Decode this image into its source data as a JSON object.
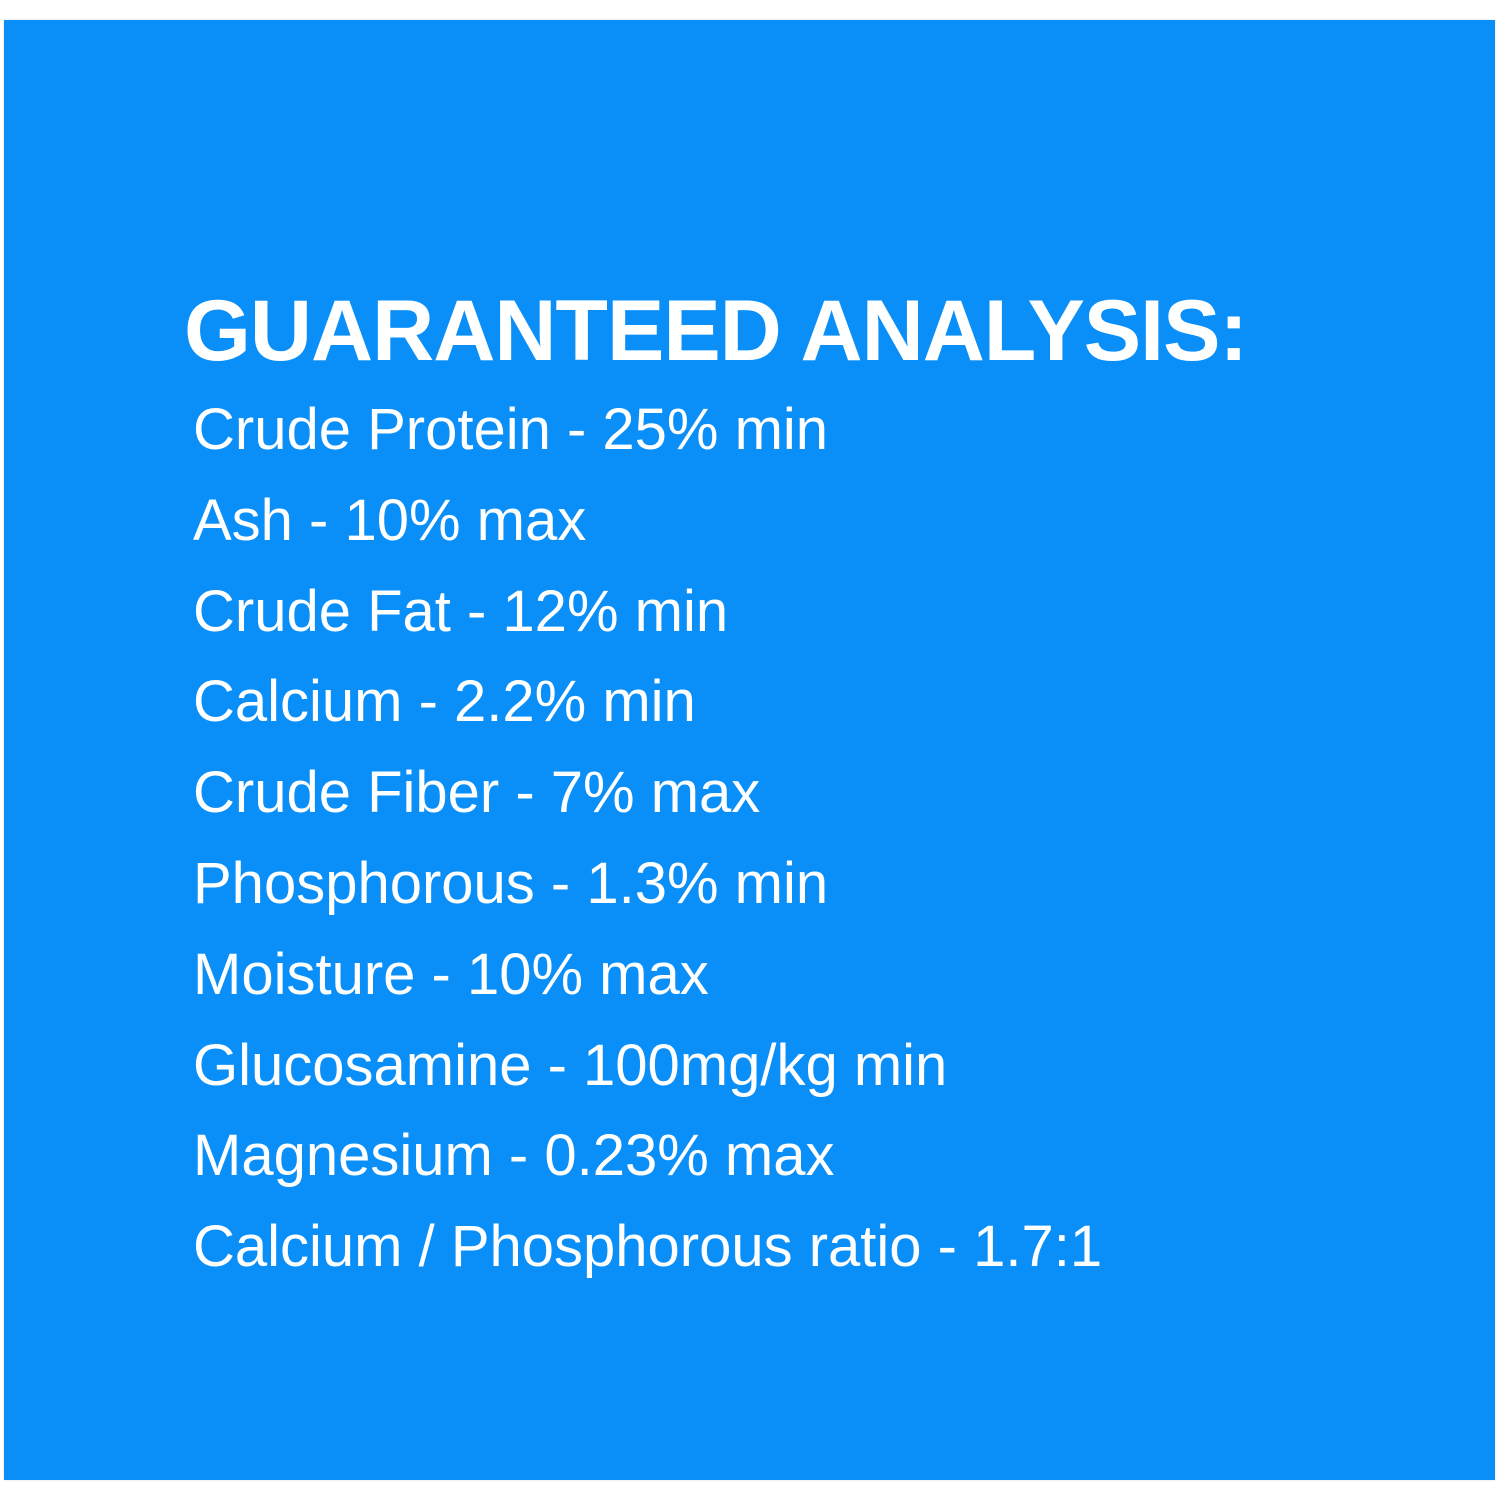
{
  "title": "GUARANTEED ANALYSIS:",
  "background_color": "#0a8ff8",
  "items": [
    "Crude Protein - 25% min",
    "Ash - 10% max",
    "Crude Fat - 12% min",
    "Calcium - 2.2% min",
    "Crude Fiber - 7% max",
    "Phosphorous - 1.3% min",
    "Moisture - 10% max",
    "Glucosamine - 100mg/kg min",
    "Magnesium - 0.23% max",
    "Calcium / Phosphorous ratio - 1.7:1"
  ]
}
